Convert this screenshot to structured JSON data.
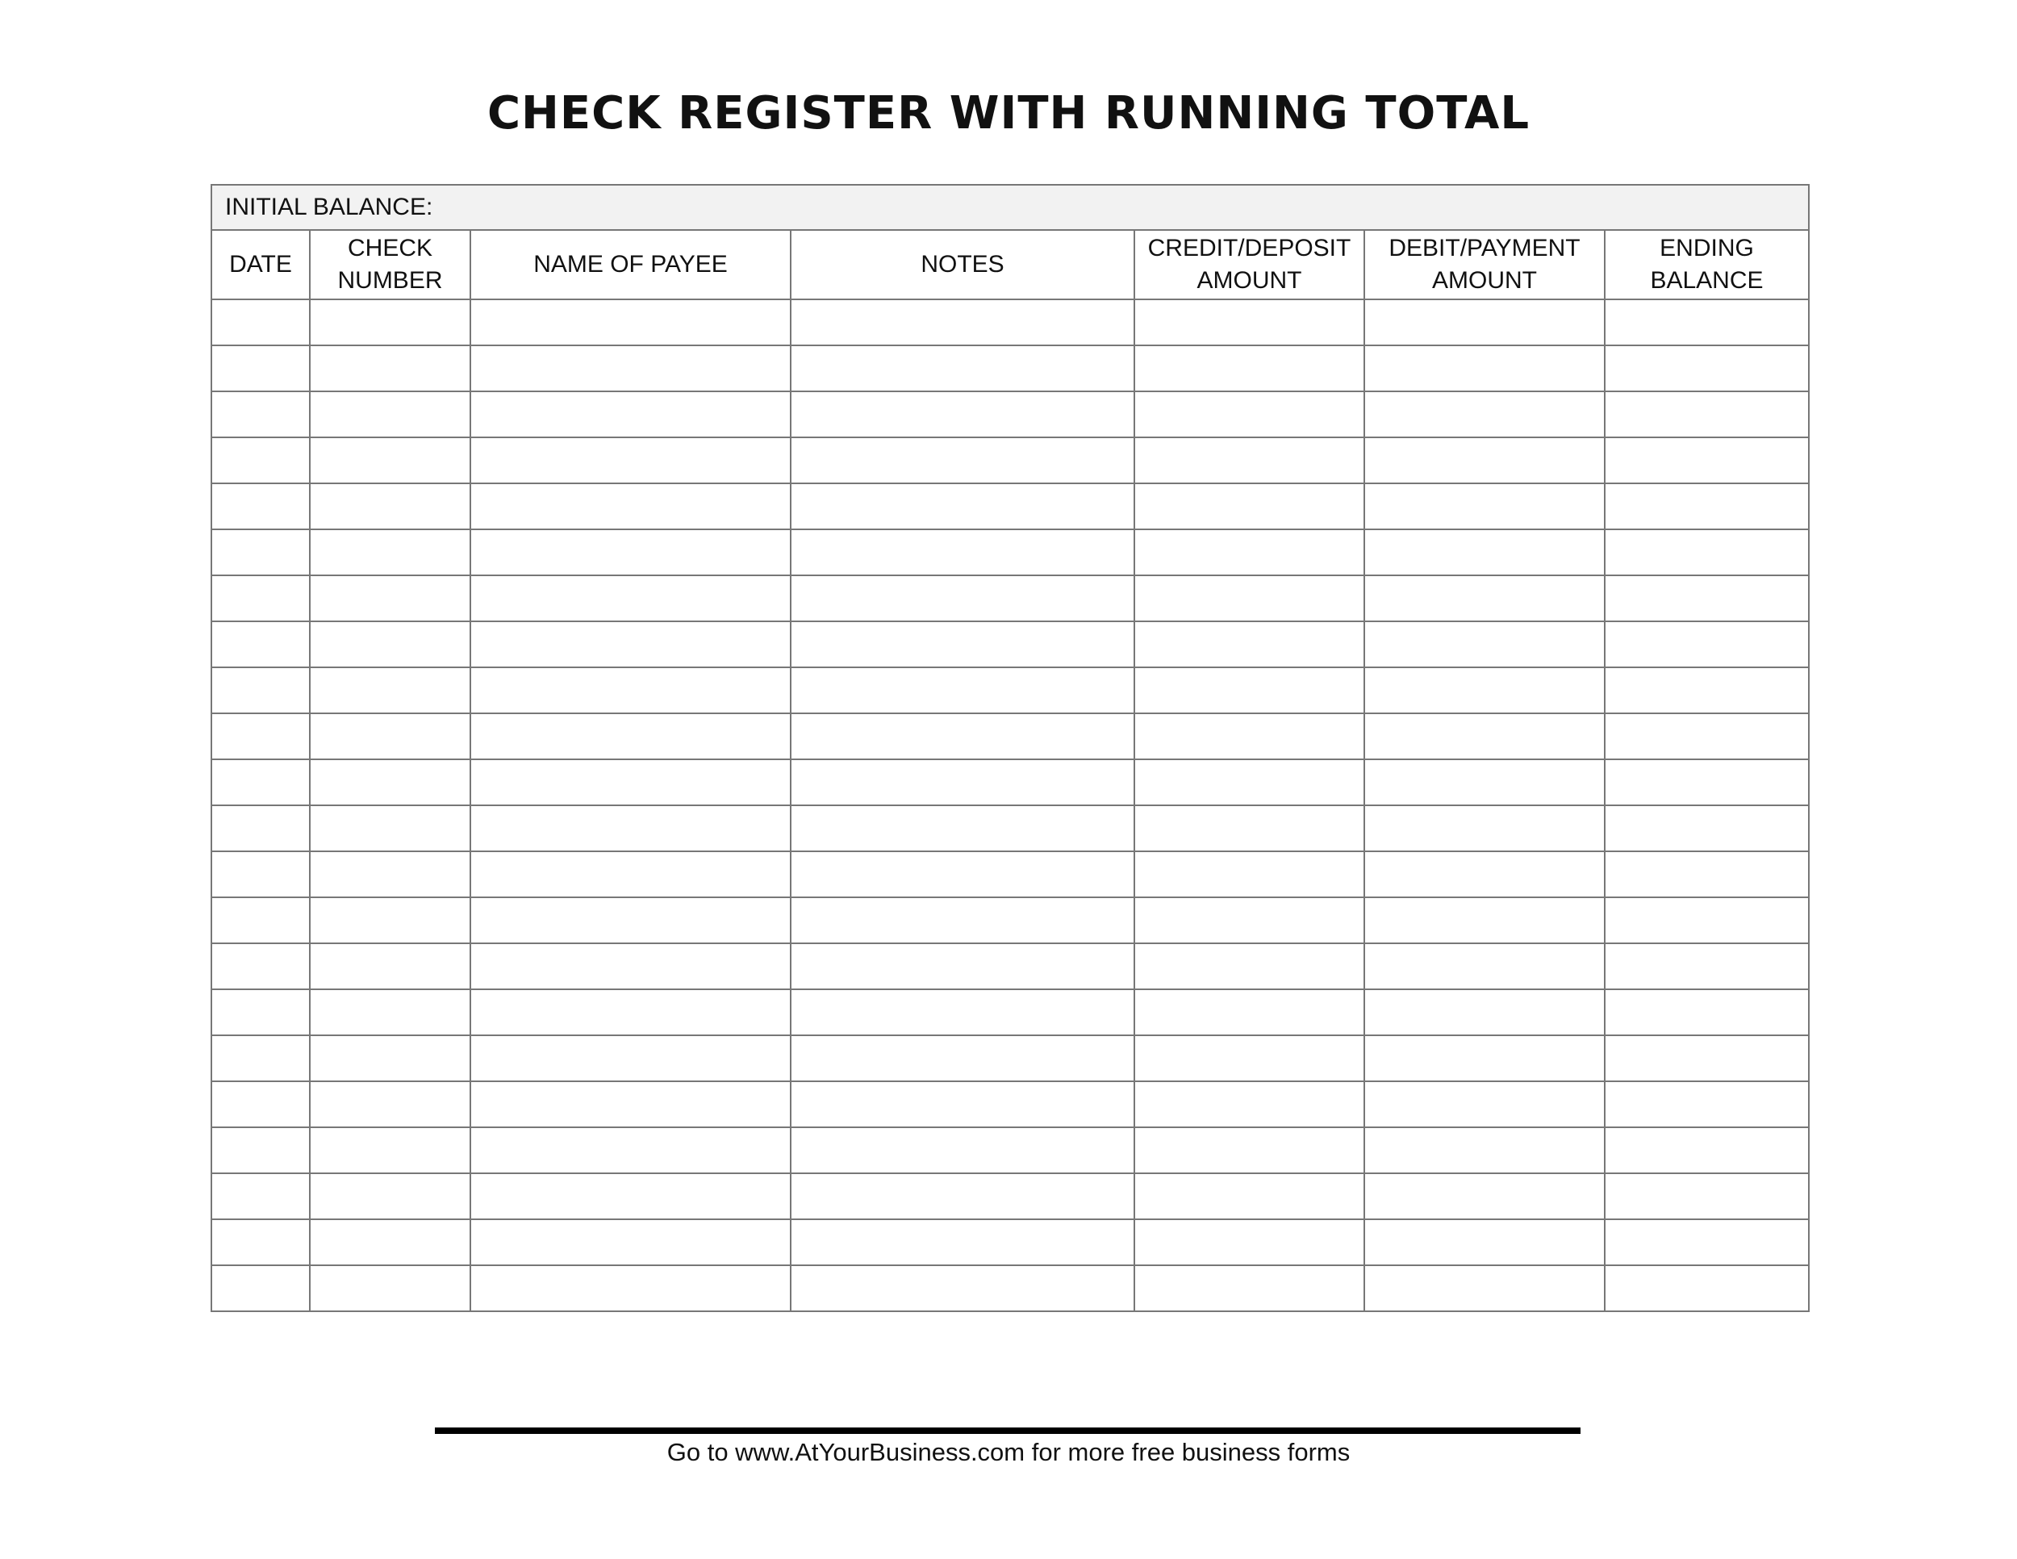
{
  "title": "CHECK REGISTER WITH RUNNING TOTAL",
  "initial_balance_label": "INITIAL BALANCE:",
  "columns": [
    "DATE",
    "CHECK\nNUMBER",
    "NAME OF PAYEE",
    "NOTES",
    "CREDIT/DEPOSIT\nAMOUNT",
    "DEBIT/PAYMENT\nAMOUNT",
    "ENDING\nBALANCE"
  ],
  "footer": "Go to www.AtYourBusiness.com for more free business forms"
}
